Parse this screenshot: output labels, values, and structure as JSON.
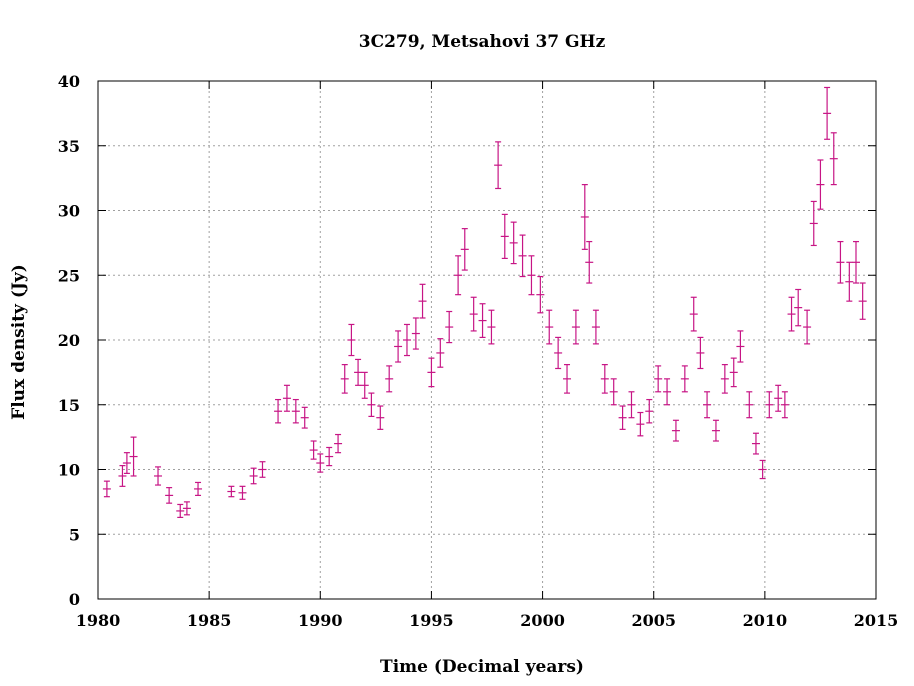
{
  "chart_data": {
    "type": "scatter",
    "title": "3C279, Metsahovi 37 GHz",
    "xlabel": "Time (Decimal years)",
    "ylabel": "Flux density (Jy)",
    "xlim": [
      1980,
      2015
    ],
    "ylim": [
      0,
      40
    ],
    "xticks": [
      1980,
      1985,
      1990,
      1995,
      2000,
      2005,
      2010,
      2015
    ],
    "yticks": [
      0,
      5,
      10,
      15,
      20,
      25,
      30,
      35,
      40
    ],
    "grid": true,
    "legend": "none",
    "series": [
      {
        "name": "3C279 37 GHz flux density",
        "color": "#c71585",
        "x": [
          1980.4,
          1981.1,
          1981.3,
          1981.6,
          1982.7,
          1983.2,
          1983.7,
          1984.0,
          1984.5,
          1986.0,
          1986.5,
          1987.0,
          1987.4,
          1988.1,
          1988.5,
          1988.9,
          1989.3,
          1989.7,
          1990.0,
          1990.4,
          1990.8,
          1991.1,
          1991.4,
          1991.7,
          1992.0,
          1992.3,
          1992.7,
          1993.1,
          1993.5,
          1993.9,
          1994.3,
          1994.6,
          1995.0,
          1995.4,
          1995.8,
          1996.2,
          1996.5,
          1996.9,
          1997.3,
          1997.7,
          1998.0,
          1998.3,
          1998.7,
          1999.1,
          1999.5,
          1999.9,
          2000.3,
          2000.7,
          2001.1,
          2001.5,
          2001.9,
          2002.1,
          2002.4,
          2002.8,
          2003.2,
          2003.6,
          2004.0,
          2004.4,
          2004.8,
          2005.2,
          2005.6,
          2006.0,
          2006.4,
          2006.8,
          2007.1,
          2007.4,
          2007.8,
          2008.2,
          2008.6,
          2008.9,
          2009.3,
          2009.6,
          2009.9,
          2010.2,
          2010.6,
          2010.9,
          2011.2,
          2011.5,
          2011.9,
          2012.2,
          2012.5,
          2012.8,
          2013.1,
          2013.4,
          2013.8,
          2014.1,
          2014.4
        ],
        "y": [
          8.5,
          9.5,
          10.5,
          11.0,
          9.5,
          8.0,
          6.8,
          7.0,
          8.5,
          8.3,
          8.2,
          9.5,
          10.0,
          14.5,
          15.5,
          14.5,
          14.0,
          11.5,
          10.5,
          11.0,
          12.0,
          17.0,
          20.0,
          17.5,
          16.5,
          15.0,
          14.0,
          17.0,
          19.5,
          20.0,
          20.5,
          23.0,
          17.5,
          19.0,
          21.0,
          25.0,
          27.0,
          22.0,
          21.5,
          21.0,
          33.5,
          28.0,
          27.5,
          26.5,
          25.0,
          23.5,
          21.0,
          19.0,
          17.0,
          21.0,
          29.5,
          26.0,
          21.0,
          17.0,
          16.0,
          14.0,
          15.0,
          13.5,
          14.5,
          17.0,
          16.0,
          13.0,
          17.0,
          22.0,
          19.0,
          15.0,
          13.0,
          17.0,
          17.5,
          19.5,
          15.0,
          12.0,
          10.0,
          15.0,
          15.5,
          15.0,
          22.0,
          22.5,
          21.0,
          29.0,
          32.0,
          37.5,
          34.0,
          26.0,
          24.5,
          26.0,
          23.0
        ],
        "err": [
          0.6,
          0.8,
          0.8,
          1.5,
          0.7,
          0.6,
          0.5,
          0.5,
          0.5,
          0.4,
          0.5,
          0.6,
          0.6,
          0.9,
          1.0,
          0.9,
          0.8,
          0.7,
          0.7,
          0.7,
          0.7,
          1.1,
          1.2,
          1.0,
          1.0,
          0.9,
          0.9,
          1.0,
          1.2,
          1.2,
          1.2,
          1.3,
          1.1,
          1.1,
          1.2,
          1.5,
          1.6,
          1.3,
          1.3,
          1.3,
          1.8,
          1.7,
          1.6,
          1.6,
          1.5,
          1.4,
          1.3,
          1.2,
          1.1,
          1.3,
          2.5,
          1.6,
          1.3,
          1.1,
          1.0,
          0.9,
          1.0,
          0.9,
          0.9,
          1.0,
          1.0,
          0.8,
          1.0,
          1.3,
          1.2,
          1.0,
          0.8,
          1.1,
          1.1,
          1.2,
          1.0,
          0.8,
          0.7,
          1.0,
          1.0,
          1.0,
          1.3,
          1.4,
          1.3,
          1.7,
          1.9,
          2.0,
          2.0,
          1.6,
          1.5,
          1.6,
          1.4
        ]
      }
    ]
  }
}
